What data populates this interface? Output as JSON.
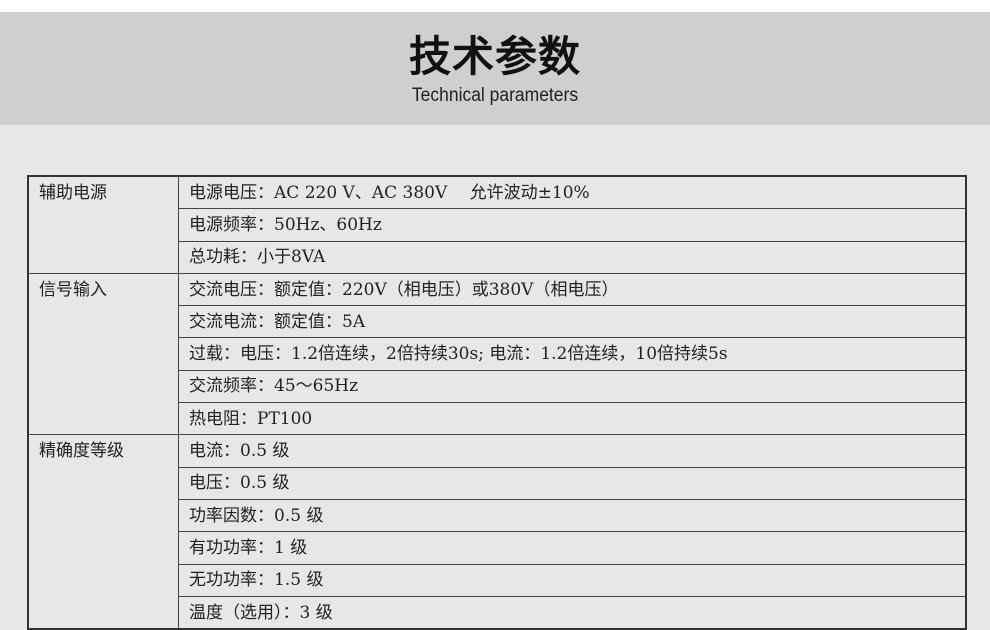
{
  "header": {
    "title": "技术参数",
    "subtitle": "Technical parameters"
  },
  "groups": [
    {
      "category": "辅助电源",
      "items": [
        "电源电压：AC 220 V、AC 380V　 允许波动±10%",
        "电源频率：50Hz、60Hz",
        "总功耗：小于8VA"
      ]
    },
    {
      "category": "信号输入",
      "items": [
        "交流电压：额定值：220V（相电压）或380V（相电压）",
        "交流电流：额定值：5A",
        "过载：电压：1.2倍连续，2倍持续30s; 电流：1.2倍连续，10倍持续5s",
        "交流频率：45～65Hz",
        "热电阻：PT100"
      ]
    },
    {
      "category": "精确度等级",
      "items": [
        "电流：0.5 级",
        "电压：0.5 级",
        "功率因数：0.5 级",
        "有功功率：1 级",
        "无功功率：1.5 级",
        "温度（选用）：3 级"
      ]
    }
  ]
}
